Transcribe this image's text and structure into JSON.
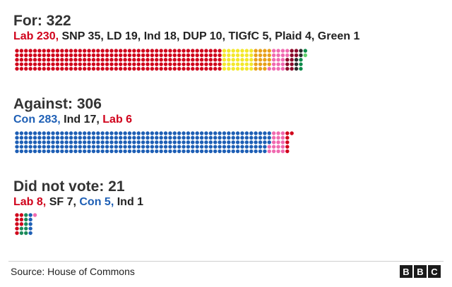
{
  "chart_data": {
    "type": "dot-matrix",
    "blocks": [
      {
        "title": "For: 322",
        "groups": [
          {
            "label": "Lab",
            "value": 230,
            "color": "#d0021b",
            "label_color": "#d0021b",
            "comma": true
          },
          {
            "label": "SNP",
            "value": 35,
            "color": "#f3e82c",
            "label_color": "#222222",
            "comma": true
          },
          {
            "label": "LD",
            "value": 19,
            "color": "#e8a01a",
            "label_color": "#222222",
            "comma": true
          },
          {
            "label": "Ind",
            "value": 18,
            "color": "#f06ab0",
            "label_color": "#222222",
            "comma": true
          },
          {
            "label": "DUP",
            "value": 10,
            "color": "#8c0a2a",
            "label_color": "#222222",
            "comma": true
          },
          {
            "label": "TIGfC",
            "value": 5,
            "color": "#2b2b2b",
            "label_color": "#222222",
            "comma": true
          },
          {
            "label": "Plaid",
            "value": 4,
            "color": "#0e8a4a",
            "label_color": "#222222",
            "comma": true
          },
          {
            "label": "Green",
            "value": 1,
            "color": "#5fd06a",
            "label_color": "#222222",
            "comma": false
          }
        ]
      },
      {
        "title": "Against: 306",
        "groups": [
          {
            "label": "Con",
            "value": 283,
            "color": "#1e5fb5",
            "label_color": "#1e5fb5",
            "comma": true
          },
          {
            "label": "Ind",
            "value": 17,
            "color": "#f06ab0",
            "label_color": "#222222",
            "comma": true
          },
          {
            "label": "Lab",
            "value": 6,
            "color": "#d0021b",
            "label_color": "#d0021b",
            "comma": false
          }
        ]
      },
      {
        "title": "Did not vote: 21",
        "groups": [
          {
            "label": "Lab",
            "value": 8,
            "color": "#d0021b",
            "label_color": "#d0021b",
            "comma": true
          },
          {
            "label": "SF",
            "value": 7,
            "color": "#1b8a5a",
            "label_color": "#222222",
            "comma": true
          },
          {
            "label": "Con",
            "value": 5,
            "color": "#1e5fb5",
            "label_color": "#1e5fb5",
            "comma": true
          },
          {
            "label": "Ind",
            "value": 1,
            "color": "#f06ab0",
            "label_color": "#222222",
            "comma": false
          }
        ]
      }
    ]
  },
  "footer": {
    "source": "Source: House of Commons",
    "logo_letters": [
      "B",
      "B",
      "C"
    ]
  }
}
